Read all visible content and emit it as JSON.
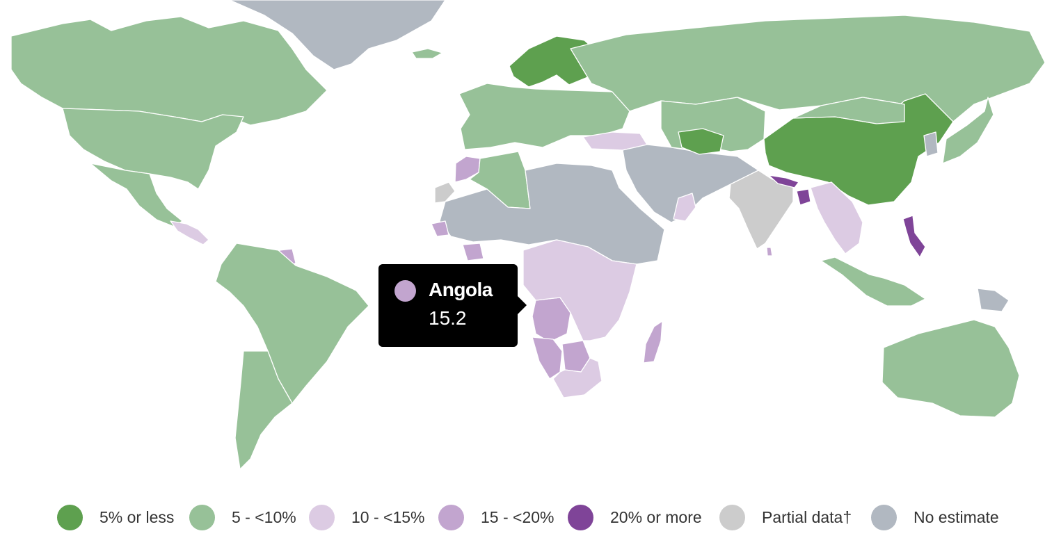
{
  "tooltip": {
    "country": "Angola",
    "value": "15.2",
    "swatch_color": "#c2a5cf"
  },
  "legend": [
    {
      "label": "5% or less",
      "color": "#5ea04f"
    },
    {
      "label": "5 - <10%",
      "color": "#97c198"
    },
    {
      "label": "10 - <15%",
      "color": "#dccbe3"
    },
    {
      "label": "15 - <20%",
      "color": "#c2a5cf"
    },
    {
      "label": "20% or more",
      "color": "#7f4498"
    },
    {
      "label": "Partial data†",
      "color": "#cccccc"
    },
    {
      "label": "No estimate",
      "color": "#b1b8c1"
    }
  ],
  "map": {
    "background": "#ffffff",
    "regions": [
      {
        "name": "Canada",
        "category": "5 - <10%"
      },
      {
        "name": "United States",
        "category": "5 - <10%"
      },
      {
        "name": "Mexico",
        "category": "5 - <10%"
      },
      {
        "name": "Central America",
        "category": "10 - <15%"
      },
      {
        "name": "Guyana",
        "category": "15 - <20%"
      },
      {
        "name": "Brazil",
        "category": "5 - <10%"
      },
      {
        "name": "Argentina",
        "category": "5 - <10%"
      },
      {
        "name": "Greenland",
        "category": "No estimate"
      },
      {
        "name": "Iceland",
        "category": "5 - <10%"
      },
      {
        "name": "Scandinavia",
        "category": "5% or less"
      },
      {
        "name": "Europe",
        "category": "5 - <10%"
      },
      {
        "name": "Russia",
        "category": "5 - <10%"
      },
      {
        "name": "Turkey",
        "category": "10 - <15%"
      },
      {
        "name": "Morocco",
        "category": "15 - <20%"
      },
      {
        "name": "Algeria",
        "category": "5 - <10%"
      },
      {
        "name": "Western Sahara",
        "category": "Partial data†"
      },
      {
        "name": "Sahel and North Africa",
        "category": "No estimate"
      },
      {
        "name": "Middle East",
        "category": "No estimate"
      },
      {
        "name": "Oman",
        "category": "10 - <15%"
      },
      {
        "name": "Central Asia",
        "category": "5 - <10%"
      },
      {
        "name": "Turkmenistan",
        "category": "5% or less"
      },
      {
        "name": "China",
        "category": "5% or less"
      },
      {
        "name": "Mongolia",
        "category": "5 - <10%"
      },
      {
        "name": "India",
        "category": "Partial data†"
      },
      {
        "name": "Nepal",
        "category": "20% or more"
      },
      {
        "name": "Bangladesh",
        "category": "20% or more"
      },
      {
        "name": "Southeast Asia",
        "category": "10 - <15%"
      },
      {
        "name": "Philippines",
        "category": "20% or more"
      },
      {
        "name": "Indonesia",
        "category": "5 - <10%"
      },
      {
        "name": "Papua New Guinea",
        "category": "No estimate"
      },
      {
        "name": "Japan",
        "category": "5 - <10%"
      },
      {
        "name": "Korea",
        "category": "No estimate"
      },
      {
        "name": "Australia",
        "category": "5 - <10%"
      },
      {
        "name": "Angola",
        "category": "15 - <20%"
      },
      {
        "name": "Namibia",
        "category": "15 - <20%"
      },
      {
        "name": "Botswana",
        "category": "15 - <20%"
      },
      {
        "name": "Madagascar",
        "category": "15 - <20%"
      },
      {
        "name": "Central and East Africa",
        "category": "10 - <15%"
      },
      {
        "name": "South Africa",
        "category": "10 - <15%"
      },
      {
        "name": "Ghana",
        "category": "15 - <20%"
      },
      {
        "name": "Senegal",
        "category": "15 - <20%"
      },
      {
        "name": "Sri Lanka",
        "category": "15 - <20%"
      }
    ]
  }
}
